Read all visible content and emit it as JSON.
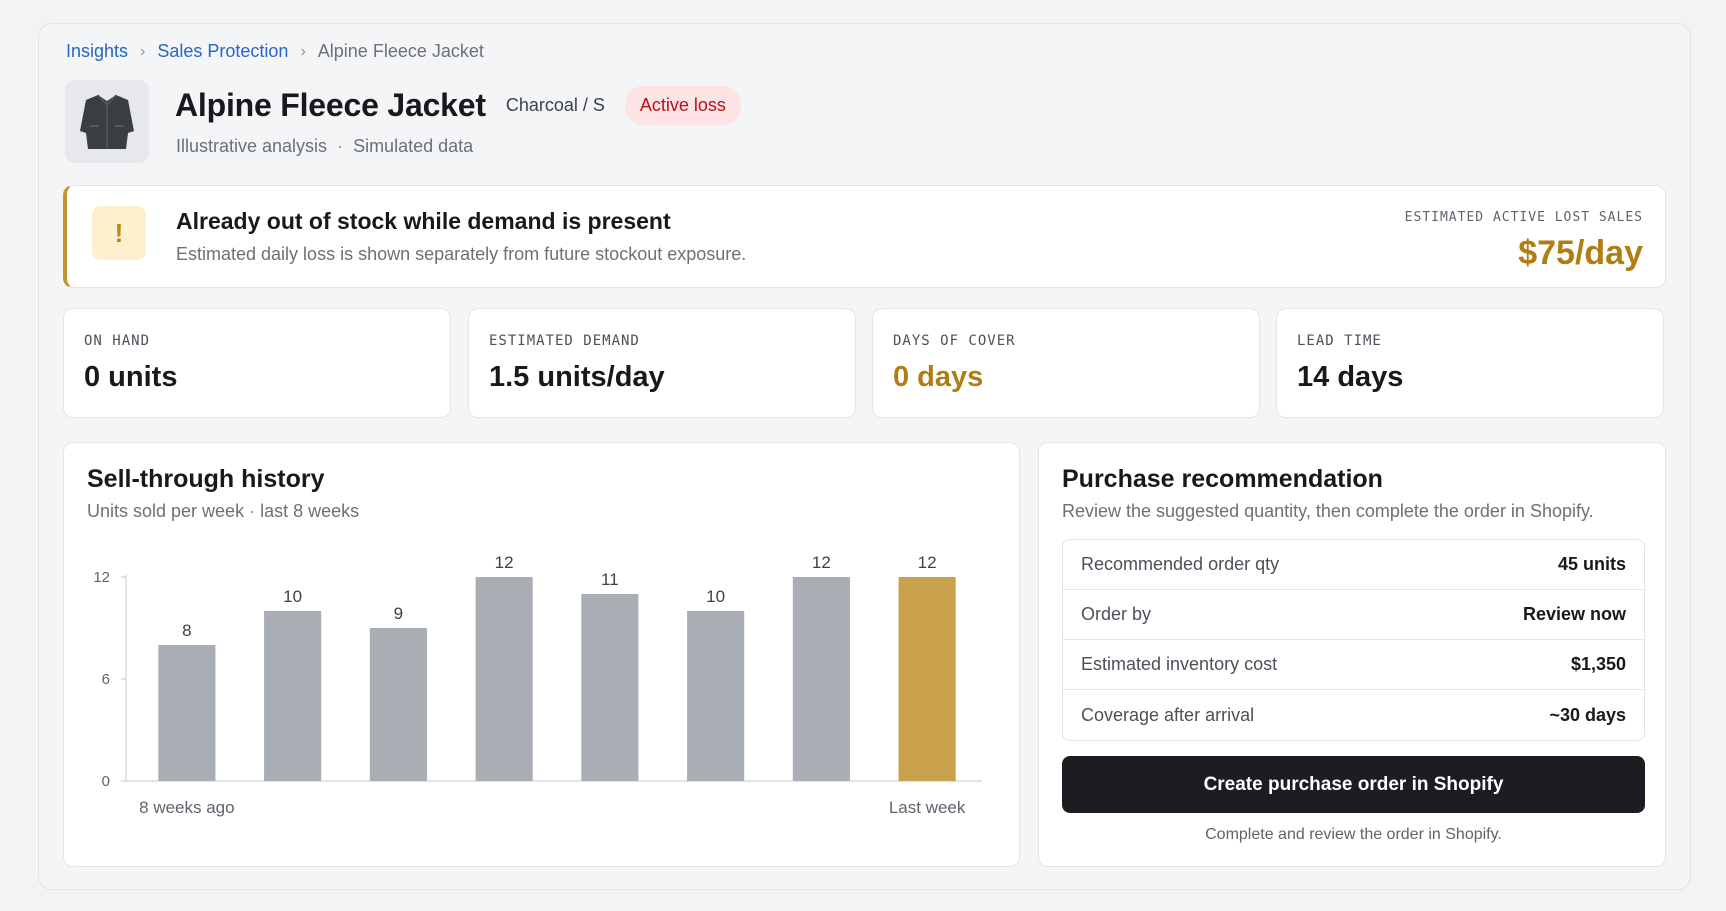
{
  "breadcrumb": {
    "items": [
      "Insights",
      "Sales Protection"
    ],
    "current": "Alpine Fleece Jacket",
    "separator": "›"
  },
  "product": {
    "title": "Alpine Fleece Jacket",
    "variant": "Charcoal / S",
    "status_badge": "Active loss",
    "subtitle_left": "Illustrative analysis",
    "subtitle_right": "Simulated data",
    "thumbnail_icon": "jacket-icon"
  },
  "alert": {
    "icon": "!",
    "title": "Already out of stock while demand is present",
    "description": "Estimated daily loss is shown separately from future stockout exposure.",
    "metric_label": "ESTIMATED ACTIVE LOST SALES",
    "metric_value": "$75/day",
    "accent_color": "#c3972d"
  },
  "stats": [
    {
      "label": "ON HAND",
      "value": "0 units"
    },
    {
      "label": "ESTIMATED DEMAND",
      "value": "1.5 units/day"
    },
    {
      "label": "DAYS OF COVER",
      "value": "0 days"
    },
    {
      "label": "LEAD TIME",
      "value": "14 days"
    }
  ],
  "history": {
    "title": "Sell-through history",
    "subtitle_left": "Units sold per week",
    "subtitle_right": "last 8 weeks"
  },
  "chart_data": {
    "type": "bar",
    "categories": [
      "8 weeks ago",
      "",
      "",
      "",
      "",
      "",
      "",
      "Last week"
    ],
    "values": [
      8,
      10,
      9,
      12,
      11,
      10,
      12,
      12
    ],
    "yticks": [
      0,
      6,
      12
    ],
    "ylim": [
      0,
      12
    ],
    "x_start_label": "8 weeks ago",
    "x_end_label": "Last week",
    "bar_color": "#a9aeb5",
    "highlight_color": "#c9a04c",
    "highlight_index": 7
  },
  "recommendation": {
    "title": "Purchase recommendation",
    "subtitle": "Review the suggested quantity, then complete the order in Shopify.",
    "rows": [
      {
        "label": "Recommended order qty",
        "value": "45 units"
      },
      {
        "label": "Order by",
        "value": "Review now"
      },
      {
        "label": "Estimated inventory cost",
        "value": "$1,350"
      },
      {
        "label": "Coverage after arrival",
        "value": "~30 days"
      }
    ],
    "cta_label": "Create purchase order in Shopify",
    "cta_note": "Complete and review the order in Shopify."
  }
}
